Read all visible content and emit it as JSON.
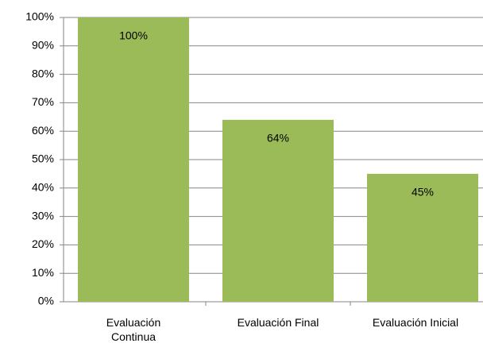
{
  "chart_data": {
    "type": "bar",
    "categories": [
      "Evaluación Continua",
      "Evaluación Final",
      "Evaluación Inicial"
    ],
    "values": [
      100,
      64,
      45
    ],
    "value_labels": [
      "100%",
      "64%",
      "45%"
    ],
    "color": "#9bbb59",
    "ylim": [
      0,
      100
    ],
    "yticks": [
      {
        "value": 0,
        "label": "0%"
      },
      {
        "value": 10,
        "label": "10%"
      },
      {
        "value": 20,
        "label": "20%"
      },
      {
        "value": 30,
        "label": "30%"
      },
      {
        "value": 40,
        "label": "40%"
      },
      {
        "value": 50,
        "label": "50%"
      },
      {
        "value": 60,
        "label": "60%"
      },
      {
        "value": 70,
        "label": "70%"
      },
      {
        "value": 80,
        "label": "80%"
      },
      {
        "value": 90,
        "label": "90%"
      },
      {
        "value": 100,
        "label": "100%"
      }
    ],
    "grid": true
  }
}
